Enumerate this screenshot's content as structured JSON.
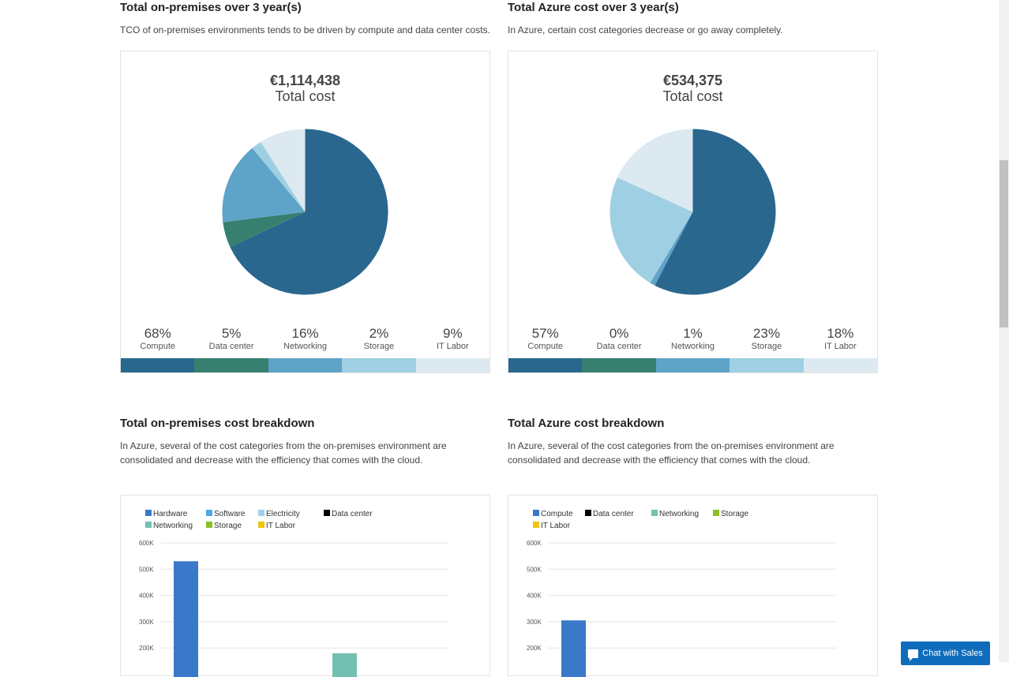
{
  "pie_sections": [
    {
      "title": "Total on-premises over 3 year(s)",
      "description": "TCO of on-premises environments tends to be driven by compute and data center costs.",
      "total_amount": "€1,114,438",
      "total_label": "Total cost",
      "legend": [
        {
          "pct": "68%",
          "name": "Compute",
          "color": "#2a678f"
        },
        {
          "pct": "5%",
          "name": "Data center",
          "color": "#378070"
        },
        {
          "pct": "16%",
          "name": "Networking",
          "color": "#5ea3c8"
        },
        {
          "pct": "2%",
          "name": "Storage",
          "color": "#9fcfe3"
        },
        {
          "pct": "9%",
          "name": "IT Labor",
          "color": "#dde9f0"
        }
      ]
    },
    {
      "title": "Total Azure cost over 3 year(s)",
      "description": "In Azure, certain cost categories decrease or go away completely.",
      "total_amount": "€534,375",
      "total_label": "Total cost",
      "legend": [
        {
          "pct": "57%",
          "name": "Compute",
          "color": "#2a678f"
        },
        {
          "pct": "0%",
          "name": "Data center",
          "color": "#378070"
        },
        {
          "pct": "1%",
          "name": "Networking",
          "color": "#5ea3c8"
        },
        {
          "pct": "23%",
          "name": "Storage",
          "color": "#9fcfe3"
        },
        {
          "pct": "18%",
          "name": "IT Labor",
          "color": "#dde9f0"
        }
      ]
    }
  ],
  "breakdown_sections": [
    {
      "title": "Total on-premises cost breakdown",
      "description": "In Azure, several of the cost categories from the on-premises environment are consolidated and decrease with the efficiency that comes with the cloud."
    },
    {
      "title": "Total Azure cost breakdown",
      "description": "In Azure, several of the cost categories from the on-premises environment are consolidated and decrease with the efficiency that comes with the cloud."
    }
  ],
  "chart_data": [
    {
      "type": "pie",
      "title": "€1,114,438 Total cost",
      "categories": [
        "Compute",
        "Data center",
        "Networking",
        "Storage",
        "IT Labor"
      ],
      "values": [
        68,
        5,
        16,
        2,
        9
      ],
      "colors": [
        "#2a678f",
        "#378070",
        "#5ea3c8",
        "#9fcfe3",
        "#dde9f0"
      ]
    },
    {
      "type": "pie",
      "title": "€534,375 Total cost",
      "categories": [
        "Compute",
        "Data center",
        "Networking",
        "Storage",
        "IT Labor"
      ],
      "values": [
        57,
        0,
        1,
        23,
        18
      ],
      "colors": [
        "#2a678f",
        "#378070",
        "#5ea3c8",
        "#9fcfe3",
        "#dde9f0"
      ]
    },
    {
      "type": "bar",
      "legend": [
        {
          "name": "Hardware",
          "color": "#3a78c9"
        },
        {
          "name": "Software",
          "color": "#4ba8e8"
        },
        {
          "name": "Electricity",
          "color": "#a3d0ee"
        },
        {
          "name": "Data center",
          "color": "#000000"
        },
        {
          "name": "Networking",
          "color": "#74c0b0"
        },
        {
          "name": "Storage",
          "color": "#8cbf26"
        },
        {
          "name": "IT Labor",
          "color": "#f2c311"
        }
      ],
      "ytick_labels": [
        "600K",
        "500K",
        "400K",
        "300K",
        "200K"
      ],
      "ylim": [
        200000,
        600000
      ],
      "grid": true,
      "bars": [
        {
          "series": "Hardware",
          "value": 530000
        },
        {
          "series": "Networking",
          "value": 180000
        }
      ]
    },
    {
      "type": "bar",
      "legend": [
        {
          "name": "Compute",
          "color": "#3a78c9"
        },
        {
          "name": "Data center",
          "color": "#000000"
        },
        {
          "name": "Networking",
          "color": "#74c0b0"
        },
        {
          "name": "Storage",
          "color": "#8cbf26"
        },
        {
          "name": "IT Labor",
          "color": "#f2c311"
        }
      ],
      "ytick_labels": [
        "600K",
        "500K",
        "400K",
        "300K",
        "200K"
      ],
      "ylim": [
        200000,
        600000
      ],
      "grid": true,
      "bars": [
        {
          "series": "Compute",
          "value": 305000
        }
      ]
    }
  ],
  "chat": {
    "label": "Chat with Sales"
  }
}
